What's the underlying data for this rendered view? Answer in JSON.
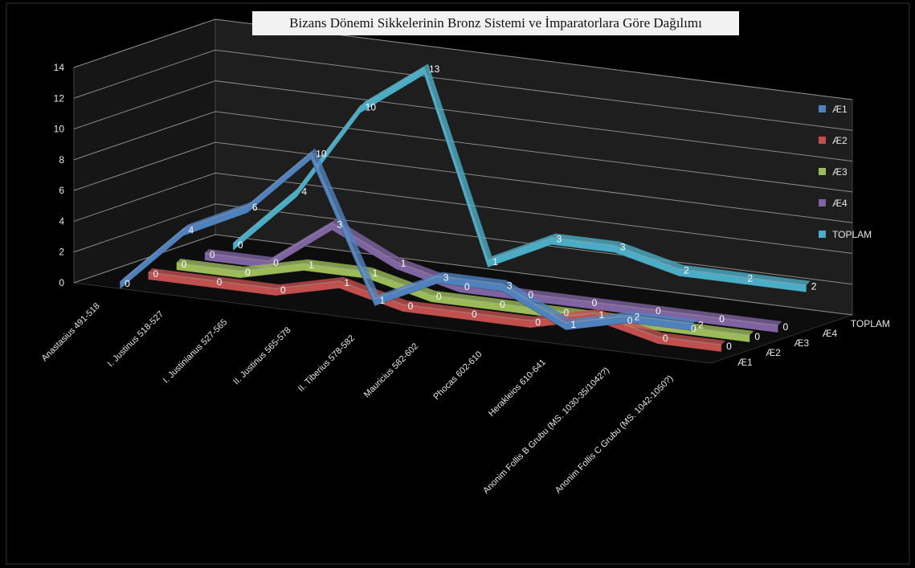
{
  "chart_data": {
    "type": "line",
    "title": "Bizans Dönemi Sikkelerinin Bronz Sistemi ve İmparatorlara Göre Dağılımı",
    "categories": [
      "Anastasius 491-518",
      "I. Justinus 518-527",
      "I. Justinianus 527-565",
      "II. Justinus 565-578",
      "II. Tiberius 578-582",
      "Mauricius 582-602",
      "Phocas 602-610",
      "Herakleios 610-641",
      "Anonim Follis B Grubu (MS. 1030-35/1042?)",
      "Anonim Follis C Grubu (MS. 1042-1050?)"
    ],
    "series": [
      {
        "name": "Æ1",
        "color": "#4f81bd",
        "values": [
          0,
          4,
          6,
          10,
          1,
          3,
          3,
          1,
          2,
          2
        ]
      },
      {
        "name": "Æ2",
        "color": "#c0504d",
        "values": [
          0,
          0,
          0,
          1,
          0,
          0,
          0,
          1,
          0,
          0
        ]
      },
      {
        "name": "Æ3",
        "color": "#9bbb59",
        "values": [
          0,
          0,
          1,
          1,
          0,
          0,
          0,
          0,
          0,
          0
        ]
      },
      {
        "name": "Æ4",
        "color": "#8064a2",
        "values": [
          0,
          0,
          3,
          1,
          0,
          0,
          0,
          0,
          0,
          0
        ]
      },
      {
        "name": "TOPLAM",
        "color": "#4bacc6",
        "values": [
          0,
          4,
          10,
          13,
          1,
          3,
          3,
          2,
          2,
          2
        ]
      }
    ],
    "ylim": [
      0,
      14
    ],
    "yticks": [
      0,
      2,
      4,
      6,
      8,
      10,
      12,
      14
    ],
    "depth_axis_labels": [
      "Æ1",
      "Æ2",
      "Æ3",
      "Æ4",
      "TOPLAM"
    ],
    "legend": "right",
    "grid": true
  }
}
